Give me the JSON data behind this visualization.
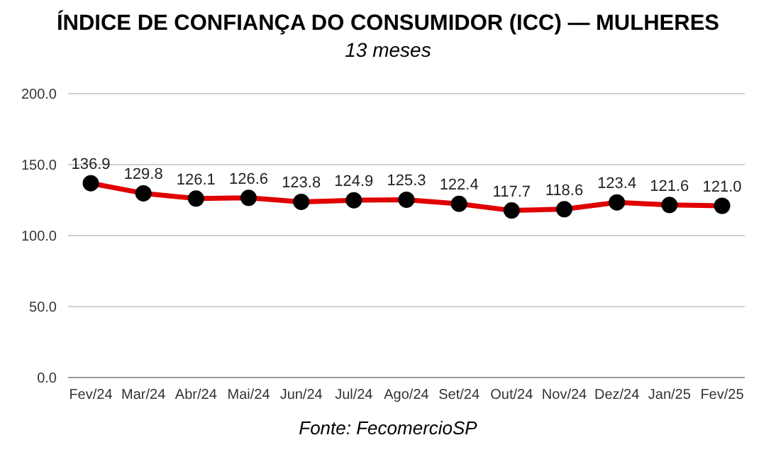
{
  "chart_data": {
    "type": "line",
    "title": "ÍNDICE DE CONFIANÇA DO CONSUMIDOR (ICC) — MULHERES",
    "subtitle": "13 meses",
    "annotations": [
      "Fonte: FecomercioSP"
    ],
    "categories": [
      "Fev/24",
      "Mar/24",
      "Abr/24",
      "Mai/24",
      "Jun/24",
      "Jul/24",
      "Ago/24",
      "Set/24",
      "Out/24",
      "Nov/24",
      "Dez/24",
      "Jan/25",
      "Fev/25"
    ],
    "series": [
      {
        "color": "#e00000",
        "values": [
          136.9,
          129.8,
          126.1,
          126.6,
          123.8,
          124.9,
          125.3,
          122.4,
          117.7,
          118.6,
          123.4,
          121.6,
          121.0
        ]
      }
    ],
    "value_labels": [
      "136.9",
      "129.8",
      "126.1",
      "126.6",
      "123.8",
      "124.9",
      "125.3",
      "122.4",
      "117.7",
      "118.6",
      "123.4",
      "121.6",
      "121.0"
    ],
    "ylim": [
      0,
      200
    ],
    "yticks": [
      {
        "value": 0,
        "label": "0.0"
      },
      {
        "value": 50,
        "label": "50.0"
      },
      {
        "value": 100,
        "label": "100.0"
      },
      {
        "value": 150,
        "label": "150.0"
      },
      {
        "value": 200,
        "label": "200.0"
      }
    ],
    "grid": "y",
    "marker": "circle",
    "line_style": "solid",
    "legend": false
  }
}
